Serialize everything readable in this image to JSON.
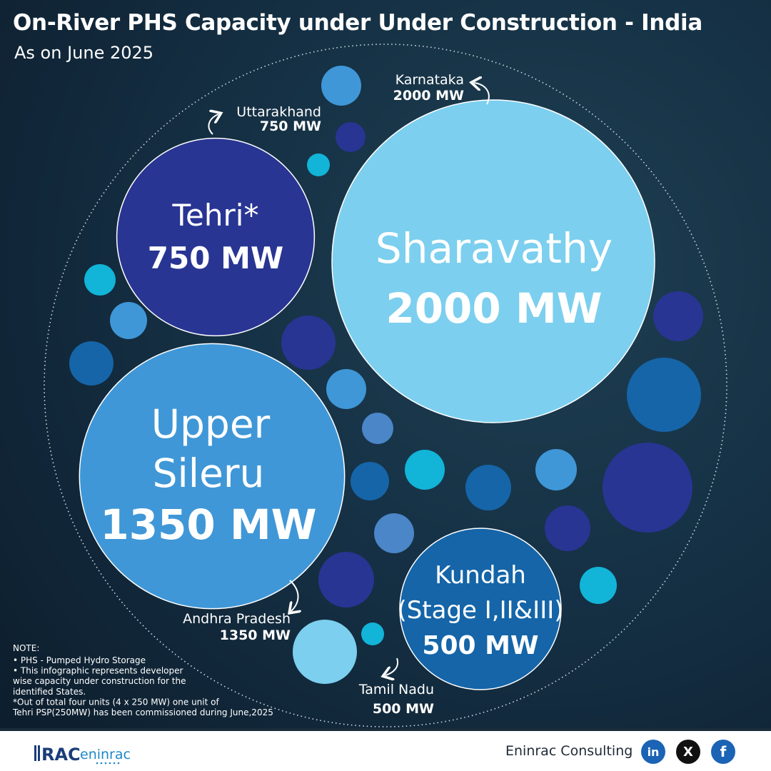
{
  "header": {
    "title": "On-River PHS Capacity under Under Construction - India",
    "subtitle": "As on June 2025"
  },
  "chart_data": {
    "type": "bubble",
    "unit": "MW",
    "series": [
      {
        "project": "Tehri*",
        "state": "Uttarakhand",
        "capacity": 750,
        "capacity_label": "750 MW",
        "state_capacity_label": "750 MW",
        "color": "#283593"
      },
      {
        "project": "Sharavathy",
        "state": "Karnataka",
        "capacity": 2000,
        "capacity_label": "2000 MW",
        "state_capacity_label": "2000 MW",
        "color": "#7ccfee"
      },
      {
        "project": "Upper Sileru",
        "state": "Andhra Pradesh",
        "capacity": 1350,
        "capacity_label": "1350 MW",
        "state_capacity_label": "1350 MW",
        "color": "#3f97d7"
      },
      {
        "project": "Kundah (Stage I,II&III)",
        "state": "Tamil Nadu",
        "capacity": 500,
        "capacity_label": "500 MW",
        "state_capacity_label": "500 MW",
        "color": "#1565a8"
      }
    ],
    "decoration_palette": [
      "#283593",
      "#1565a8",
      "#3f97d7",
      "#12b4d8",
      "#7ccfee",
      "#4a86c8"
    ]
  },
  "notes": {
    "heading": "NOTE:",
    "lines": [
      "• PHS - Pumped Hydro Storage",
      "• This infographic represents developer",
      "  wise capacity under construction for the",
      "  identified States.",
      "*Out of total four units (4 x 250 MW) one unit of",
      "  Tehri PSP(250MW) has been commissioned during June,2025"
    ]
  },
  "footer": {
    "logo_text": "RACeninrac",
    "brand": "Eninrac Consulting",
    "social": [
      {
        "name": "linkedin-icon",
        "glyph": "in"
      },
      {
        "name": "x-icon",
        "glyph": "X"
      },
      {
        "name": "facebook-icon",
        "glyph": "f"
      }
    ]
  }
}
